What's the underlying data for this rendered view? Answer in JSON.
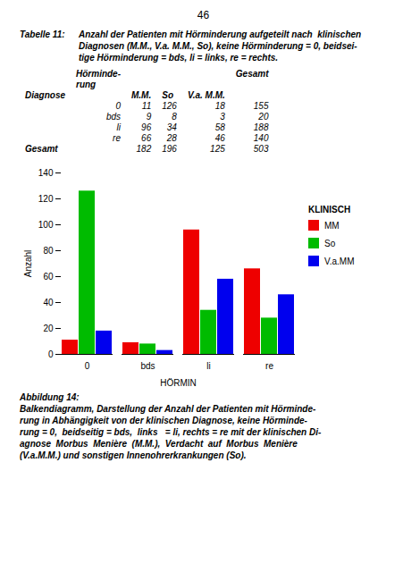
{
  "chart_data": {
    "type": "bar",
    "page_number": "46",
    "table_title": {
      "label": "Tabelle 11:",
      "lines": [
        "Anzahl der Patienten mit Hörminderung aufgeteilt nach  klinischen",
        "Diagnosen (M.M., V.a. M.M., So), keine Hörminderung = 0, beidsei-",
        "tige Hörminderung = bds, li = links, re = rechts."
      ]
    },
    "table": {
      "header_rows": [
        [
          null,
          "Hörminde-\nrung",
          null,
          null,
          null,
          "Gesamt"
        ],
        [
          "Diagnose",
          null,
          "M.M.",
          "So",
          "V.a. M.M.",
          null
        ]
      ],
      "rows": [
        [
          null,
          "0",
          "11",
          "126",
          "18",
          "155"
        ],
        [
          null,
          "bds",
          "9",
          "8",
          "3",
          "20"
        ],
        [
          null,
          "li",
          "96",
          "34",
          "58",
          "188"
        ],
        [
          null,
          "re",
          "66",
          "28",
          "46",
          "140"
        ],
        [
          "Gesamt",
          null,
          "182",
          "196",
          "125",
          "503"
        ]
      ]
    },
    "categories": [
      "0",
      "bds",
      "li",
      "re"
    ],
    "series": [
      {
        "name": "MM",
        "color": "#EE0000",
        "values": [
          11,
          9,
          96,
          66
        ]
      },
      {
        "name": "So",
        "color": "#00BB00",
        "values": [
          126,
          8,
          34,
          28
        ]
      },
      {
        "name": "V.a.MM",
        "color": "#0000EE",
        "values": [
          18,
          3,
          58,
          46
        ]
      }
    ],
    "xlabel": "HÖRMIN",
    "ylabel": "Anzahl",
    "legend_title": "KLINISCH",
    "legend": "right",
    "ylim": [
      0,
      140
    ],
    "yticks": [
      0,
      20,
      40,
      60,
      80,
      100,
      120,
      140
    ],
    "grid": false,
    "caption": [
      "Abbildung 14:",
      "Balkendiagramm, Darstellung der Anzahl der Patienten mit Hörminde-",
      "rung in Abhängigkeit von der klinischen Diagnose, keine Hörminde-",
      "rung = 0,  beidseitig = bds,  links   = li, rechts = re mit der klinischen Di-",
      "agnose  Morbus  Menière  (M.M.),  Verdacht  auf  Morbus  Menière",
      "(V.a.M.M.) und sonstigen Innenohrerkrankungen (So)."
    ]
  }
}
